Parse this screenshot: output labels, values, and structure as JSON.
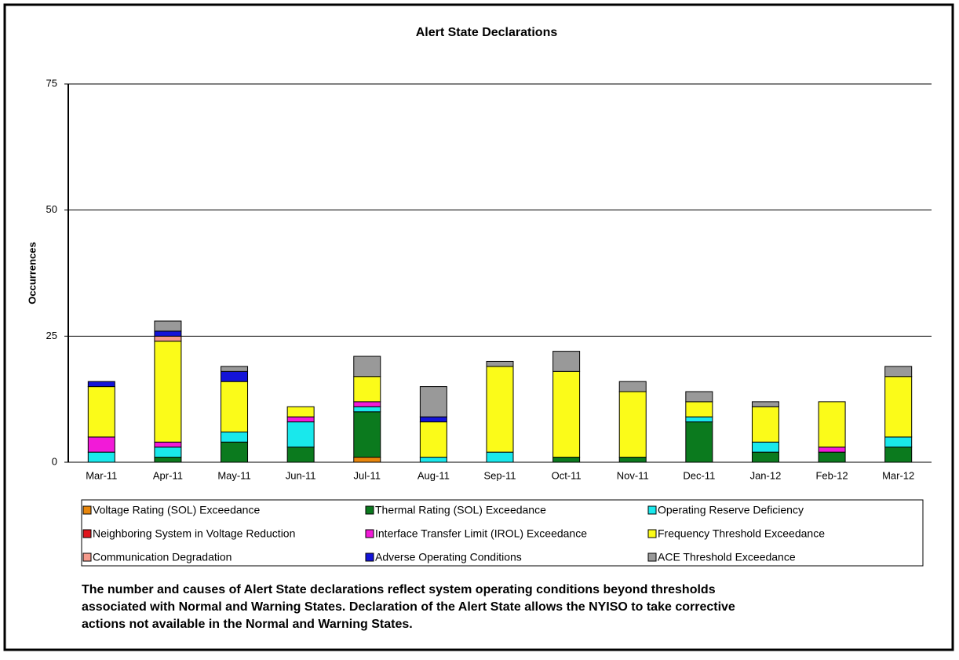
{
  "chart_data": {
    "type": "stacked_bar",
    "title": "Alert State Declarations",
    "y_label": "Occurrences",
    "categories": [
      "Mar-11",
      "Apr-11",
      "May-11",
      "Jun-11",
      "Jul-11",
      "Aug-11",
      "Sep-11",
      "Oct-11",
      "Nov-11",
      "Dec-11",
      "Jan-12",
      "Feb-12",
      "Mar-12"
    ],
    "series": [
      {
        "name": "Voltage Rating (SOL) Exceedance",
        "color": "#e8860b",
        "values": [
          0,
          0,
          0,
          0,
          1,
          0,
          0,
          0,
          0,
          0,
          0,
          0,
          0
        ]
      },
      {
        "name": "Thermal Rating (SOL) Exceedance",
        "color": "#0b7a1e",
        "values": [
          0,
          1,
          4,
          3,
          9,
          0,
          0,
          1,
          1,
          8,
          2,
          2,
          3
        ]
      },
      {
        "name": "Operating Reserve Deficiency",
        "color": "#19e8ec",
        "values": [
          2,
          2,
          2,
          5,
          1,
          1,
          2,
          0,
          0,
          1,
          2,
          0,
          2
        ]
      },
      {
        "name": "Neighboring System in Voltage Reduction",
        "color": "#e0141c",
        "values": [
          0,
          0,
          0,
          0,
          0,
          0,
          0,
          0,
          0,
          0,
          0,
          0,
          0
        ]
      },
      {
        "name": "Interface Transfer Limit (IROL) Exceedance",
        "color": "#f21ad8",
        "values": [
          3,
          1,
          0,
          1,
          1,
          0,
          0,
          0,
          0,
          0,
          0,
          1,
          0
        ]
      },
      {
        "name": "Frequency Threshold Exceedance",
        "color": "#fbfb19",
        "values": [
          10,
          20,
          10,
          2,
          5,
          7,
          17,
          17,
          13,
          3,
          7,
          9,
          12
        ]
      },
      {
        "name": "Communication Degradation",
        "color": "#f59a8c",
        "values": [
          0,
          1,
          0,
          0,
          0,
          0,
          0,
          0,
          0,
          0,
          0,
          0,
          0
        ]
      },
      {
        "name": "Adverse Operating Conditions",
        "color": "#1414d8",
        "values": [
          1,
          1,
          2,
          0,
          0,
          1,
          0,
          0,
          0,
          0,
          0,
          0,
          0
        ]
      },
      {
        "name": "ACE Threshold Exceedance",
        "color": "#999999",
        "values": [
          0,
          2,
          1,
          0,
          4,
          6,
          1,
          4,
          2,
          2,
          1,
          0,
          2
        ]
      }
    ],
    "ylim": [
      0,
      75
    ],
    "yticks": [
      0,
      25,
      50,
      75
    ],
    "grid": true,
    "caption": [
      "The number and causes of Alert State declarations reflect system operating conditions beyond thresholds",
      "associated with Normal and Warning States.  Declaration of the Alert State allows the NYISO to take corrective",
      "actions not available in the Normal and Warning States."
    ]
  }
}
